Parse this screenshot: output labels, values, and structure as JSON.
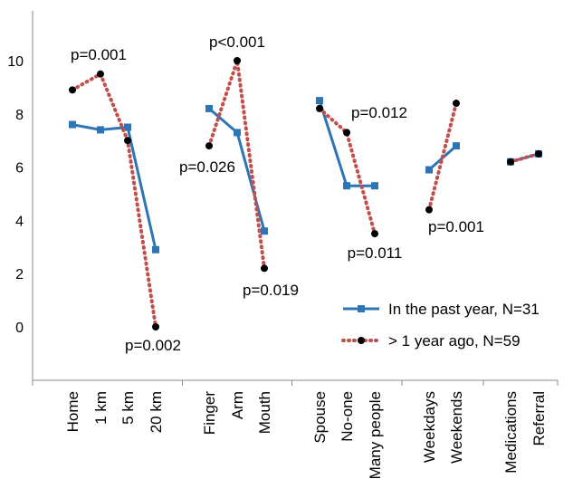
{
  "chart_data": {
    "type": "line",
    "title": "",
    "xlabel": "",
    "ylabel": "",
    "ylim": [
      -2,
      12
    ],
    "yticks": [
      0,
      2,
      4,
      6,
      8,
      10
    ],
    "grid": false,
    "legend_position": "bottom-right",
    "groups": [
      [
        "Home",
        "1 km",
        "5 km",
        "20 km"
      ],
      [
        "Finger",
        "Arm",
        "Mouth"
      ],
      [
        "Spouse",
        "No-one",
        "Many people"
      ],
      [
        "Weekdays",
        "Weekends"
      ],
      [
        "Medications",
        "Referral"
      ]
    ],
    "categories": [
      "Home",
      "1 km",
      "5 km",
      "20 km",
      "Finger",
      "Arm",
      "Mouth",
      "Spouse",
      "No-one",
      "Many people",
      "Weekdays",
      "Weekends",
      "Medications",
      "Referral"
    ],
    "series": [
      {
        "name": "In the past year, N=31",
        "style": "solid-square",
        "color": "#2e75b6",
        "values": [
          7.6,
          7.4,
          7.5,
          2.9,
          8.2,
          7.3,
          3.6,
          8.5,
          5.3,
          5.3,
          5.9,
          6.8,
          6.2,
          6.5
        ]
      },
      {
        "name": "> 1 year ago, N=59",
        "style": "dotted-circle",
        "color": "#c0504d",
        "values": [
          8.9,
          9.5,
          7.0,
          0.0,
          6.8,
          10.0,
          2.2,
          8.2,
          7.3,
          3.5,
          4.4,
          8.4,
          6.2,
          6.5
        ]
      }
    ],
    "annotations": [
      {
        "text": "p=0.001",
        "category": "1 km"
      },
      {
        "text": "p=0.002",
        "category": "20 km"
      },
      {
        "text": "p=0.026",
        "category": "Finger"
      },
      {
        "text": "p<0.001",
        "category": "Arm"
      },
      {
        "text": "p=0.019",
        "category": "Mouth"
      },
      {
        "text": "p=0.012",
        "category": "No-one"
      },
      {
        "text": "p=0.011",
        "category": "Many people"
      },
      {
        "text": "p=0.001",
        "category": "Weekdays"
      }
    ]
  }
}
